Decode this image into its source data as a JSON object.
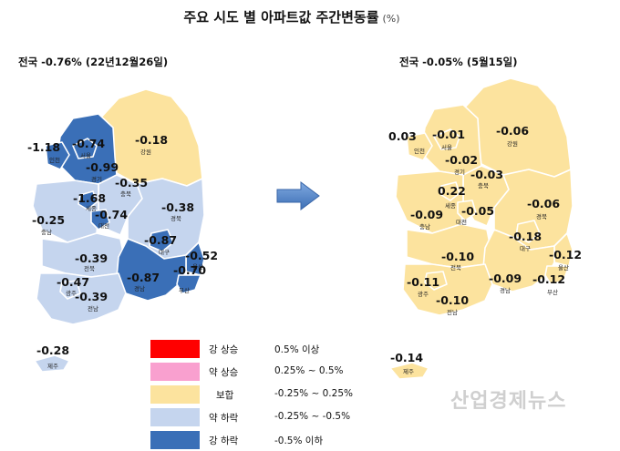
{
  "title": "주요 시도 별 아파트값 주간변동률",
  "title_unit": "(%)",
  "left_map": {
    "heading": "전국 -0.76% (22년12월26일)",
    "regions": [
      {
        "name": "인천",
        "value": "-1.18",
        "color": "#3a6fb7"
      },
      {
        "name": "서울",
        "value": "-0.74",
        "color": "#3a6fb7"
      },
      {
        "name": "경기",
        "value": "-0.99",
        "color": "#3a6fb7"
      },
      {
        "name": "강원",
        "value": "-0.18",
        "color": "#fce39e"
      },
      {
        "name": "충북",
        "value": "-0.35",
        "color": "#c5d5ee"
      },
      {
        "name": "세종",
        "value": "-1.68",
        "color": "#3a6fb7"
      },
      {
        "name": "대전",
        "value": "-0.74",
        "color": "#3a6fb7"
      },
      {
        "name": "충남",
        "value": "-0.25",
        "color": "#c5d5ee"
      },
      {
        "name": "경북",
        "value": "-0.38",
        "color": "#c5d5ee"
      },
      {
        "name": "대구",
        "value": "-0.87",
        "color": "#3a6fb7"
      },
      {
        "name": "울산",
        "value": "-0.52",
        "color": "#3a6fb7"
      },
      {
        "name": "전북",
        "value": "-0.39",
        "color": "#c5d5ee"
      },
      {
        "name": "경남",
        "value": "-0.87",
        "color": "#3a6fb7"
      },
      {
        "name": "부산",
        "value": "-0.70",
        "color": "#3a6fb7"
      },
      {
        "name": "광주",
        "value": "-0.47",
        "color": "#c5d5ee"
      },
      {
        "name": "전남",
        "value": "-0.39",
        "color": "#c5d5ee"
      },
      {
        "name": "제주",
        "value": "-0.28",
        "color": "#c5d5ee"
      }
    ]
  },
  "right_map": {
    "heading": "전국 -0.05% (5월15일)",
    "regions": [
      {
        "name": "인천",
        "value": "0.03",
        "color": "#fce39e"
      },
      {
        "name": "서울",
        "value": "-0.01",
        "color": "#fce39e"
      },
      {
        "name": "경기",
        "value": "-0.02",
        "color": "#fce39e"
      },
      {
        "name": "강원",
        "value": "-0.06",
        "color": "#fce39e"
      },
      {
        "name": "충북",
        "value": "-0.03",
        "color": "#fce39e"
      },
      {
        "name": "세종",
        "value": "0.22",
        "color": "#fce39e"
      },
      {
        "name": "대전",
        "value": "-0.05",
        "color": "#fce39e"
      },
      {
        "name": "충남",
        "value": "-0.09",
        "color": "#fce39e"
      },
      {
        "name": "경북",
        "value": "-0.06",
        "color": "#fce39e"
      },
      {
        "name": "대구",
        "value": "-0.18",
        "color": "#fce39e"
      },
      {
        "name": "울산",
        "value": "-0.12",
        "color": "#fce39e"
      },
      {
        "name": "전북",
        "value": "-0.10",
        "color": "#fce39e"
      },
      {
        "name": "경남",
        "value": "-0.09",
        "color": "#fce39e"
      },
      {
        "name": "부산",
        "value": "-0.12",
        "color": "#fce39e"
      },
      {
        "name": "광주",
        "value": "-0.11",
        "color": "#fce39e"
      },
      {
        "name": "전남",
        "value": "-0.10",
        "color": "#fce39e"
      },
      {
        "name": "제주",
        "value": "-0.14",
        "color": "#fce39e"
      }
    ]
  },
  "legend": [
    {
      "label": "강 상승",
      "range": "0.5% 이상",
      "color": "#ff0000"
    },
    {
      "label": "약 상승",
      "range": "0.25% ~ 0.5%",
      "color": "#f9a0cf"
    },
    {
      "label": "보합",
      "range": "-0.25% ~ 0.25%",
      "color": "#fce39e"
    },
    {
      "label": "약 하락",
      "range": "-0.25% ~ -0.5%",
      "color": "#c5d5ee"
    },
    {
      "label": "강 하락",
      "range": "-0.5% 이하",
      "color": "#3a6fb7"
    }
  ],
  "arrow_icon": "right-arrow-icon",
  "watermark": "산업경제뉴스"
}
